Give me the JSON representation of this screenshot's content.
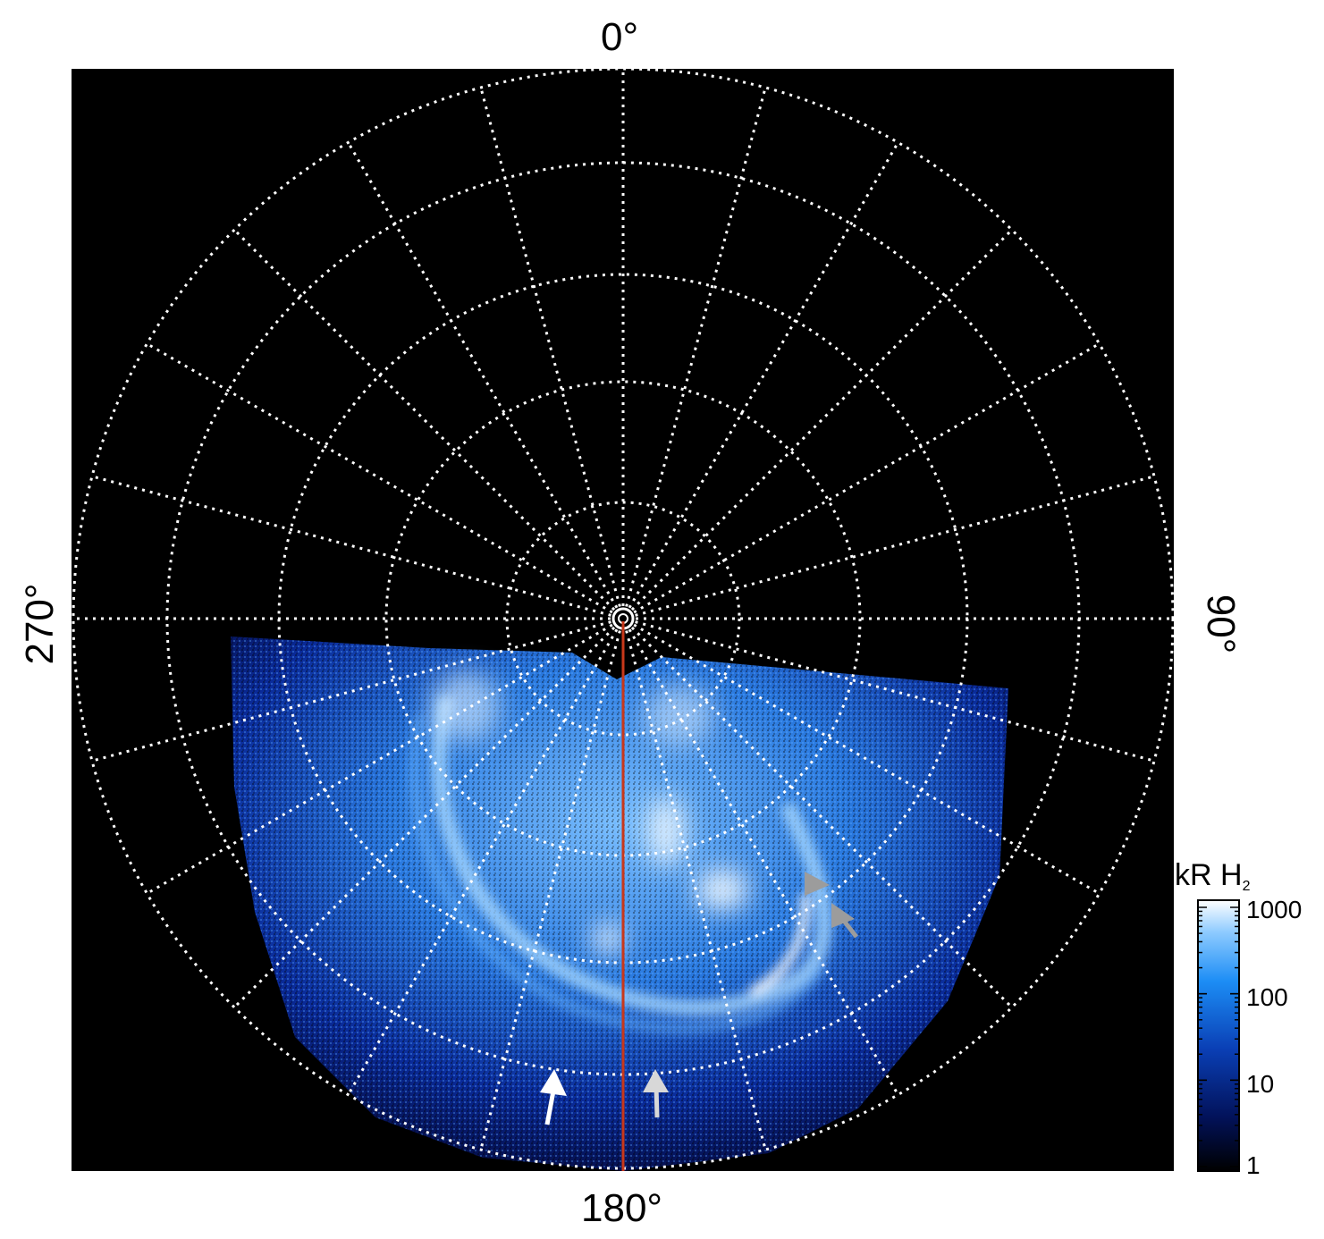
{
  "colors": {
    "background": "#000000",
    "grid": "#ffffff",
    "meridian_line": "#c8381a",
    "arrow_white": "#ffffff",
    "arrow_gray": "#9c9c9c",
    "aurora_low": "#061060",
    "aurora_mid": "#1e7fe8",
    "aurora_high": "#e6f3ff"
  },
  "labels": {
    "top": "0°",
    "bottom": "180°",
    "left": "270°",
    "right": "90°"
  },
  "colorbar": {
    "unit": "kR H",
    "unit_subscript": "2",
    "ticks": [
      "1000",
      "100",
      "10",
      "1"
    ]
  },
  "icons": [
    "arrow-icon",
    "arrow-icon",
    "arrow-icon",
    "arrow-icon"
  ]
}
